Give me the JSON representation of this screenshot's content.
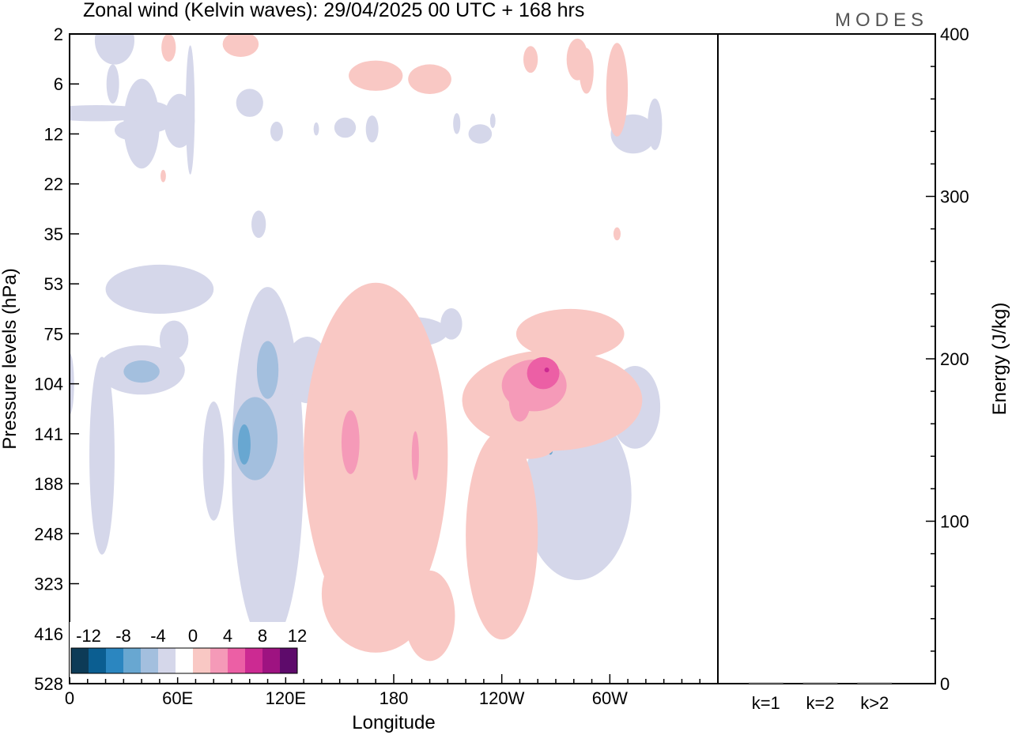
{
  "brand": "MODES",
  "chart_data": [
    {
      "type": "heatmap",
      "title": "Zonal wind (Kelvin waves):  29/04/2025  00 UTC  + 168 hrs",
      "xlabel": "Longitude",
      "ylabel": "Pressure levels (hPa)",
      "x_ticks": [
        "0",
        "60E",
        "120E",
        "180",
        "120W",
        "60W"
      ],
      "y_ticks": [
        "2",
        "6",
        "12",
        "22",
        "35",
        "53",
        "75",
        "104",
        "141",
        "188",
        "248",
        "323",
        "416",
        "528"
      ],
      "colorbar": {
        "labels": [
          "-12",
          "-8",
          "-4",
          "0",
          "4",
          "8",
          "12"
        ],
        "colors": [
          "#0d3b57",
          "#0b5e91",
          "#2b86c0",
          "#68a7d1",
          "#a3bfde",
          "#d5d7ea",
          "#ffffff",
          "#f9c8c4",
          "#f59ab8",
          "#ec5fa5",
          "#cc2a92",
          "#9e1381",
          "#5e0b6b"
        ]
      },
      "contours": [
        {
          "value": -4,
          "color": "#d5d7ea",
          "regions": [
            {
              "lon": 25,
              "lev": 2.3,
              "wlon": 22,
              "wlev": 7
            },
            {
              "lon": 24,
              "lev": 6.0,
              "wlon": 7,
              "wlev": 4
            },
            {
              "lon": 15,
              "lev": 9.0,
              "wlon": 65,
              "wlev": 2
            },
            {
              "lon": 61,
              "lev": 10.0,
              "wlon": 17,
              "wlev": 7
            },
            {
              "lon": 67,
              "lev": 8.6,
              "wlon": 5,
              "wlev": 17
            },
            {
              "lon": 46,
              "lev": 9.5,
              "wlon": 24,
              "wlev": 4
            },
            {
              "lon": 40,
              "lev": 10.4,
              "wlon": 20,
              "wlev": 12
            },
            {
              "lon": 34,
              "lev": 11.4,
              "wlon": 18,
              "wlev": 3
            },
            {
              "lon": 100,
              "lev": 7.8,
              "wlon": 15,
              "wlev": 3
            },
            {
              "lon": 137,
              "lev": 11.2,
              "wlon": 3,
              "wlev": 2
            },
            {
              "lon": 115,
              "lev": 11.6,
              "wlon": 7,
              "wlev": 3
            },
            {
              "lon": 153,
              "lev": 11.0,
              "wlon": 12,
              "wlev": 3
            },
            {
              "lon": 168,
              "lev": 11.2,
              "wlon": 7,
              "wlev": 4
            },
            {
              "lon": 228,
              "lev": 12.0,
              "wlon": 13,
              "wlev": 3
            },
            {
              "lon": 215,
              "lev": 10.4,
              "wlon": 4,
              "wlev": 3
            },
            {
              "lon": 235,
              "lev": 10.0,
              "wlon": 3,
              "wlev": 2
            },
            {
              "lon": 313,
              "lev": 12.0,
              "wlon": 25,
              "wlev": 6
            },
            {
              "lon": 325,
              "lev": 10.5,
              "wlon": 8,
              "wlev": 7
            },
            {
              "lon": 0,
              "lev": 104.0,
              "wlon": 5,
              "wlev": 40
            },
            {
              "lon": 18,
              "lev": 160.0,
              "wlon": 14,
              "wlev": 170
            },
            {
              "lon": 40,
              "lev": 95.0,
              "wlon": 48,
              "wlev": 30
            },
            {
              "lon": 58,
              "lev": 78.0,
              "wlon": 16,
              "wlev": 20
            },
            {
              "lon": 110,
              "lev": 170.0,
              "wlon": 40,
              "wlev": 280
            },
            {
              "lon": 132,
              "lev": 95.0,
              "wlon": 25,
              "wlev": 40
            },
            {
              "lon": 80,
              "lev": 165.0,
              "wlon": 12,
              "wlev": 110
            },
            {
              "lon": 50,
              "lev": 55.0,
              "wlon": 60,
              "wlev": 20
            },
            {
              "lon": 190,
              "lev": 74.0,
              "wlon": 40,
              "wlev": 15
            },
            {
              "lon": 212,
              "lev": 70.0,
              "wlon": 12,
              "wlev": 15
            },
            {
              "lon": 282,
              "lev": 200.0,
              "wlon": 60,
              "wlev": 180
            },
            {
              "lon": 314,
              "lev": 120.0,
              "wlon": 28,
              "wlev": 60
            },
            {
              "lon": 183,
              "lev": 80.0,
              "wlon": 6,
              "wlev": 10
            },
            {
              "lon": 105,
              "lev": 32.0,
              "wlon": 8,
              "wlev": 8
            }
          ]
        },
        {
          "value": -6,
          "color": "#a3bfde",
          "regions": [
            {
              "lon": 40,
              "lev": 96.0,
              "wlon": 20,
              "wlev": 14
            },
            {
              "lon": 103,
              "lev": 145.0,
              "wlon": 25,
              "wlev": 70
            },
            {
              "lon": 110,
              "lev": 95.0,
              "wlon": 12,
              "wlev": 35
            }
          ]
        },
        {
          "value": -8,
          "color": "#68a7d1",
          "regions": [
            {
              "lon": 97,
              "lev": 150.0,
              "wlon": 7,
              "wlev": 35
            },
            {
              "lon": 267,
              "lev": 155.0,
              "wlon": 2,
              "wlev": 8
            }
          ]
        },
        {
          "value": 4,
          "color": "#f9c8c4",
          "regions": [
            {
              "lon": 55,
              "lev": 2.7,
              "wlon": 8,
              "wlev": 2
            },
            {
              "lon": 95,
              "lev": 2.5,
              "wlon": 20,
              "wlev": 2
            },
            {
              "lon": 170,
              "lev": 5.0,
              "wlon": 30,
              "wlev": 3
            },
            {
              "lon": 200,
              "lev": 5.4,
              "wlon": 24,
              "wlev": 3
            },
            {
              "lon": 256,
              "lev": 3.5,
              "wlon": 8,
              "wlev": 2
            },
            {
              "lon": 282,
              "lev": 3.5,
              "wlon": 12,
              "wlev": 3
            },
            {
              "lon": 287,
              "lev": 4.5,
              "wlon": 8,
              "wlev": 4
            },
            {
              "lon": 304,
              "lev": 6.5,
              "wlon": 12,
              "wlev": 9
            },
            {
              "lon": 52,
              "lev": 20.0,
              "wlon": 3,
              "wlev": 3
            },
            {
              "lon": 304,
              "lev": 35.0,
              "wlon": 4,
              "wlev": 4
            },
            {
              "lon": 170,
              "lev": 160.0,
              "wlon": 80,
              "wlev": 260
            },
            {
              "lon": 170,
              "lev": 340.0,
              "wlon": 60,
              "wlev": 200
            },
            {
              "lon": 200,
              "lev": 380.0,
              "wlon": 28,
              "wlev": 170
            },
            {
              "lon": 240,
              "lev": 250.0,
              "wlon": 40,
              "wlev": 260
            },
            {
              "lon": 268,
              "lev": 115.0,
              "wlon": 100,
              "wlev": 70
            },
            {
              "lon": 278,
              "lev": 75.0,
              "wlon": 60,
              "wlev": 25
            },
            {
              "lon": 255,
              "lev": 150.0,
              "wlon": 30,
              "wlev": 25
            }
          ]
        },
        {
          "value": 6,
          "color": "#f59ab8",
          "regions": [
            {
              "lon": 156,
              "lev": 148.0,
              "wlon": 10,
              "wlev": 55
            },
            {
              "lon": 258,
              "lev": 105.0,
              "wlon": 36,
              "wlev": 34
            },
            {
              "lon": 250,
              "lev": 115.0,
              "wlon": 12,
              "wlev": 30
            },
            {
              "lon": 192,
              "lev": 160.0,
              "wlon": 4,
              "wlev": 45
            }
          ]
        },
        {
          "value": 8,
          "color": "#ec5fa5",
          "regions": [
            {
              "lon": 263,
              "lev": 97.0,
              "wlon": 18,
              "wlev": 20
            }
          ]
        },
        {
          "value": 10,
          "color": "#cc2a92",
          "regions": [
            {
              "lon": 265,
              "lev": 95.0,
              "wlon": 2,
              "wlev": 3
            }
          ]
        }
      ]
    },
    {
      "type": "bar",
      "ylabel": "Energy (J/kg)",
      "categories": [
        "k=1",
        "k=2",
        "k>2"
      ],
      "values": [
        0.5,
        0.3,
        0.3
      ],
      "ylim": [
        0,
        400
      ],
      "y_ticks": [
        "0",
        "100",
        "200",
        "300",
        "400"
      ]
    }
  ]
}
